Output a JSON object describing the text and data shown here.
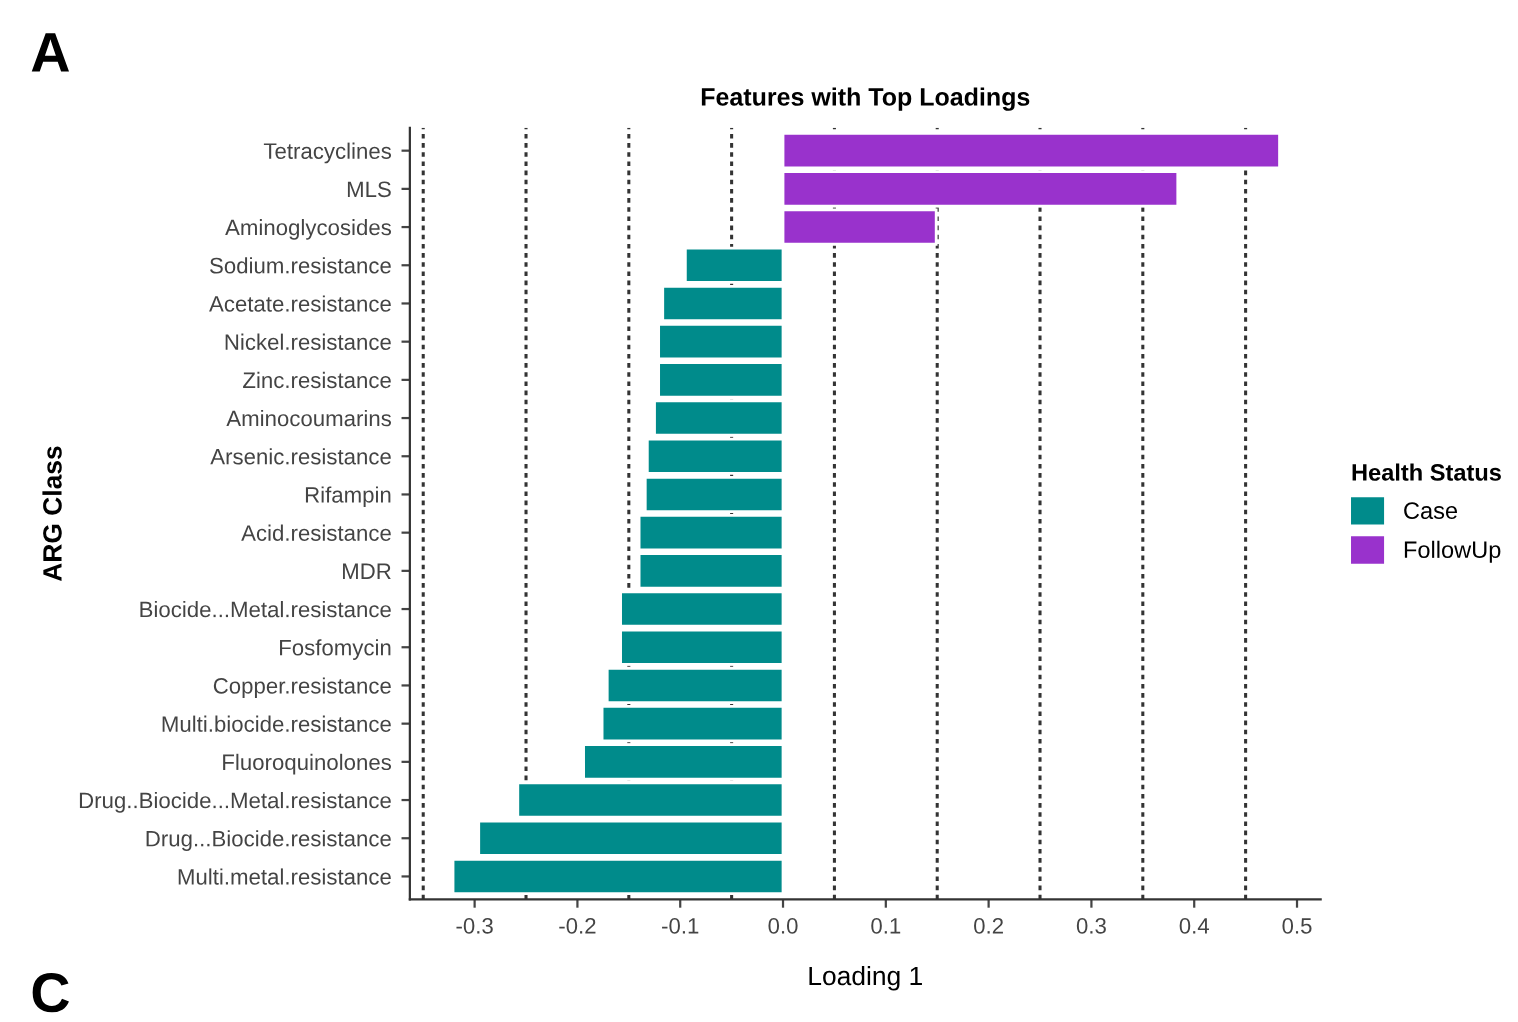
{
  "chart_data": {
    "type": "bar",
    "orientation": "horizontal",
    "stacked": true,
    "title": "Features with Top Loadings",
    "xlabel": "Loading 1",
    "ylabel": "ARG Class",
    "legend_title": "Health Status",
    "annotations": [
      "A",
      "C"
    ],
    "categories": [
      "Tetracyclines",
      "MLS",
      "Aminoglycosides",
      "Sodium.resistance",
      "Acetate.resistance",
      "Nickel.resistance",
      "Zinc.resistance",
      "Aminocoumarins",
      "Arsenic.resistance",
      "Rifampin",
      "Acid.resistance",
      "MDR",
      "Biocide...Metal.resistance",
      "Fosfomycin",
      "Copper.resistance",
      "Multi.biocide.resistance",
      "Fluoroquinolones",
      "Drug..Biocide...Metal.resistance",
      "Drug...Biocide.resistance",
      "Multi.metal.resistance"
    ],
    "series": [
      {
        "name": "Case",
        "color": "#008b8b",
        "values": [
          null,
          null,
          null,
          -0.095,
          -0.117,
          -0.121,
          -0.121,
          -0.125,
          -0.132,
          -0.134,
          -0.14,
          -0.14,
          -0.158,
          -0.158,
          -0.171,
          -0.176,
          -0.194,
          -0.258,
          -0.296,
          -0.321
        ]
      },
      {
        "name": "FollowUp",
        "color": "#9932cc",
        "values": [
          0.483,
          0.384,
          0.149,
          null,
          null,
          null,
          null,
          null,
          null,
          null,
          null,
          null,
          null,
          null,
          null,
          null,
          null,
          null,
          null,
          null
        ]
      }
    ],
    "xlim": [
      -0.363,
      0.523
    ],
    "xticks": [
      -0.3,
      -0.2,
      -0.1,
      {
        "value": 0,
        "label": "0.0"
      },
      0.1,
      0.2,
      0.3,
      0.4,
      0.5
    ],
    "ref_lines": [
      {
        "axis": "x",
        "value": -0.35,
        "color": "#333333",
        "line_style": "dotted"
      },
      {
        "axis": "x",
        "value": -0.25,
        "color": "#333333",
        "line_style": "dotted"
      },
      {
        "axis": "x",
        "value": -0.15,
        "color": "#333333",
        "line_style": "dotted"
      },
      {
        "axis": "x",
        "value": -0.05,
        "color": "#333333",
        "line_style": "dotted"
      },
      {
        "axis": "x",
        "value": 0.05,
        "color": "#333333",
        "line_style": "dotted"
      },
      {
        "axis": "x",
        "value": 0.15,
        "color": "#333333",
        "line_style": "dotted"
      },
      {
        "axis": "x",
        "value": 0.25,
        "color": "#333333",
        "line_style": "dotted"
      },
      {
        "axis": "x",
        "value": 0.35,
        "color": "#333333",
        "line_style": "dotted"
      },
      {
        "axis": "x",
        "value": 0.45,
        "color": "#333333",
        "line_style": "dotted"
      }
    ],
    "legend": "right",
    "grid": false
  }
}
